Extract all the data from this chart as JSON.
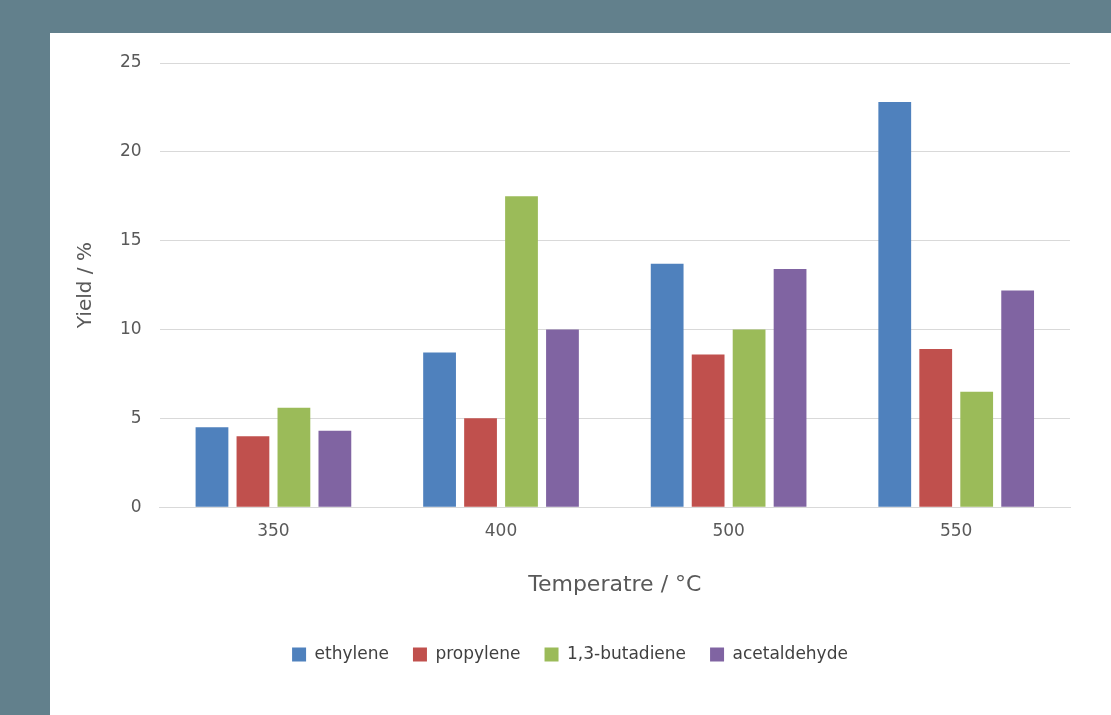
{
  "chart_data": {
    "type": "bar",
    "xlabel": "Temperatre / °C",
    "ylabel": "Yield / %",
    "categories": [
      "350",
      "400",
      "500",
      "550"
    ],
    "series": [
      {
        "name": "ethylene",
        "color": "#4f81bd",
        "values": [
          4.5,
          8.7,
          13.7,
          22.8
        ]
      },
      {
        "name": "propylene",
        "color": "#c0504d",
        "values": [
          4.0,
          5.0,
          8.6,
          8.9
        ]
      },
      {
        "name": "1,3-butadiene",
        "color": "#9bbb59",
        "values": [
          5.6,
          17.5,
          10.0,
          6.5
        ]
      },
      {
        "name": "acetaldehyde",
        "color": "#8064a2",
        "values": [
          4.3,
          10.0,
          13.4,
          12.2
        ]
      }
    ],
    "ylim": [
      0,
      25
    ],
    "yticks": [
      0,
      5,
      10,
      15,
      20,
      25
    ],
    "grid": "y",
    "legend": "bottom"
  }
}
